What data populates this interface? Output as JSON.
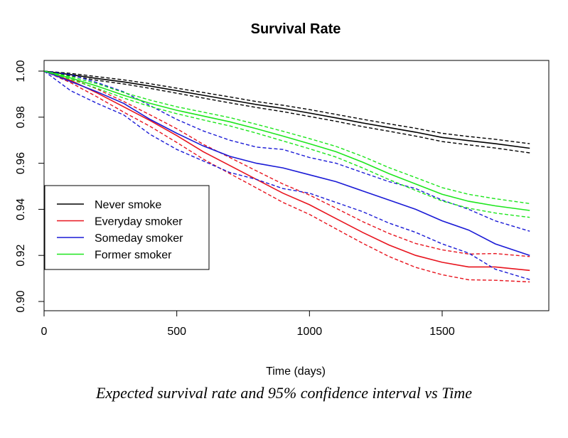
{
  "chart_data": {
    "type": "line",
    "title": "Survival Rate",
    "xlabel": "Time (days)",
    "ylabel": "",
    "xlim": [
      0,
      1900
    ],
    "ylim": [
      0.897,
      1.003
    ],
    "x_ticks": [
      0,
      500,
      1000,
      1500
    ],
    "y_ticks": [
      0.9,
      0.92,
      0.94,
      0.96,
      0.98,
      1.0
    ],
    "y_tick_labels": [
      "0.90",
      "0.92",
      "0.94",
      "0.96",
      "0.98",
      "1.00"
    ],
    "grid": false,
    "legend_position": "left-middle",
    "x": [
      0,
      100,
      200,
      300,
      400,
      500,
      600,
      700,
      800,
      900,
      1000,
      1100,
      1200,
      1300,
      1400,
      1500,
      1600,
      1700,
      1830
    ],
    "series": [
      {
        "name": "Never smoke",
        "color": "#000000",
        "values": [
          1.0,
          0.9985,
          0.9968,
          0.9953,
          0.9935,
          0.9915,
          0.9895,
          0.9875,
          0.9855,
          0.9838,
          0.9818,
          0.9797,
          0.9775,
          0.9755,
          0.9735,
          0.9712,
          0.9698,
          0.9685,
          0.9665
        ],
        "upper": [
          1.0,
          0.999,
          0.9976,
          0.9962,
          0.9945,
          0.9926,
          0.9907,
          0.9888,
          0.9868,
          0.9852,
          0.9833,
          0.9812,
          0.9791,
          0.9771,
          0.9752,
          0.973,
          0.9716,
          0.9704,
          0.9685
        ],
        "lower": [
          1.0,
          0.998,
          0.996,
          0.9944,
          0.9925,
          0.9904,
          0.9883,
          0.9862,
          0.9842,
          0.9824,
          0.9803,
          0.9782,
          0.9759,
          0.9739,
          0.9718,
          0.9694,
          0.968,
          0.9666,
          0.9645
        ]
      },
      {
        "name": "Everyday smoker",
        "color": "#e8141e",
        "values": [
          1.0,
          0.996,
          0.9905,
          0.9845,
          0.9785,
          0.972,
          0.965,
          0.959,
          0.953,
          0.947,
          0.942,
          0.936,
          0.93,
          0.9245,
          0.92,
          0.917,
          0.915,
          0.915,
          0.9135
        ],
        "upper": [
          1.0,
          0.997,
          0.9922,
          0.9868,
          0.981,
          0.975,
          0.9682,
          0.9625,
          0.9567,
          0.951,
          0.9462,
          0.9405,
          0.9347,
          0.9295,
          0.9252,
          0.9224,
          0.9206,
          0.9208,
          0.9195
        ],
        "lower": [
          1.0,
          0.995,
          0.9888,
          0.9822,
          0.976,
          0.969,
          0.9618,
          0.9555,
          0.9493,
          0.943,
          0.9378,
          0.9315,
          0.9253,
          0.9195,
          0.9148,
          0.9116,
          0.9094,
          0.9092,
          0.9085
        ]
      },
      {
        "name": "Someday smoker",
        "color": "#1a1ad6",
        "values": [
          1.0,
          0.9955,
          0.991,
          0.986,
          0.979,
          0.973,
          0.9675,
          0.963,
          0.96,
          0.958,
          0.955,
          0.952,
          0.948,
          0.944,
          0.94,
          0.935,
          0.931,
          0.925,
          0.92
        ],
        "upper": [
          1.0,
          0.9985,
          0.995,
          0.991,
          0.985,
          0.979,
          0.974,
          0.97,
          0.967,
          0.966,
          0.9625,
          0.96,
          0.956,
          0.952,
          0.949,
          0.944,
          0.94,
          0.935,
          0.9305
        ],
        "lower": [
          1.0,
          0.9915,
          0.986,
          0.981,
          0.9725,
          0.966,
          0.961,
          0.956,
          0.953,
          0.949,
          0.947,
          0.943,
          0.939,
          0.934,
          0.93,
          0.925,
          0.921,
          0.914,
          0.9095
        ]
      },
      {
        "name": "Former smoker",
        "color": "#1ee61e",
        "values": [
          1.0,
          0.997,
          0.9935,
          0.9895,
          0.986,
          0.983,
          0.9805,
          0.978,
          0.975,
          0.9718,
          0.9685,
          0.965,
          0.9605,
          0.9555,
          0.951,
          0.9465,
          0.9435,
          0.9415,
          0.9395
        ],
        "upper": [
          1.0,
          0.9976,
          0.9945,
          0.9907,
          0.9874,
          0.9845,
          0.9822,
          0.9798,
          0.9769,
          0.9739,
          0.9707,
          0.9673,
          0.963,
          0.9581,
          0.9538,
          0.9494,
          0.9465,
          0.9446,
          0.9425
        ],
        "lower": [
          1.0,
          0.9964,
          0.9925,
          0.9883,
          0.9846,
          0.9815,
          0.9788,
          0.9762,
          0.9731,
          0.9697,
          0.9663,
          0.9627,
          0.958,
          0.9529,
          0.9482,
          0.9436,
          0.9405,
          0.9384,
          0.9365
        ]
      }
    ]
  },
  "caption": "Expected survival rate and 95% confidence interval vs Time"
}
